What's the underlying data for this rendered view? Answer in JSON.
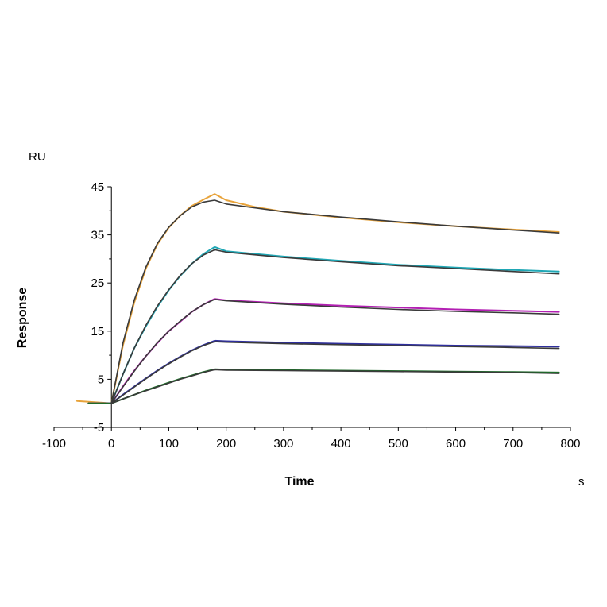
{
  "chart_data": {
    "type": "line",
    "title": "",
    "xlabel": "Time",
    "xunit": "s",
    "ylabel": "Response",
    "yunit": "RU",
    "xlim": [
      -100,
      800
    ],
    "ylim": [
      -5,
      45
    ],
    "xticks": [
      -100,
      0,
      100,
      200,
      300,
      400,
      500,
      600,
      700,
      800
    ],
    "yticks": [
      -5,
      5,
      15,
      25,
      35,
      45
    ],
    "xticklabels": [
      "-100",
      "0",
      "100",
      "200",
      "300",
      "400",
      "500",
      "600",
      "700",
      "800"
    ],
    "yticklabels": [
      "-5",
      "5",
      "15",
      "25",
      "35",
      "45"
    ],
    "grid": false,
    "legend": "none",
    "series": [
      {
        "color": "#E8A33A",
        "points": [
          [
            -60,
            0.5
          ],
          [
            0,
            0
          ],
          [
            20,
            12
          ],
          [
            40,
            21
          ],
          [
            60,
            28
          ],
          [
            80,
            33
          ],
          [
            100,
            36.5
          ],
          [
            120,
            39
          ],
          [
            140,
            41
          ],
          [
            160,
            42.3
          ],
          [
            180,
            43.5
          ],
          [
            200,
            42.2
          ],
          [
            250,
            40.8
          ],
          [
            300,
            39.8
          ],
          [
            400,
            38.6
          ],
          [
            500,
            37.6
          ],
          [
            600,
            36.8
          ],
          [
            700,
            36.1
          ],
          [
            780,
            35.6
          ]
        ]
      },
      {
        "color": "#1FA7B5",
        "points": [
          [
            -40,
            0
          ],
          [
            0,
            0
          ],
          [
            20,
            6
          ],
          [
            40,
            11.5
          ],
          [
            60,
            16
          ],
          [
            80,
            20
          ],
          [
            100,
            23.5
          ],
          [
            120,
            26.5
          ],
          [
            140,
            29
          ],
          [
            160,
            31
          ],
          [
            180,
            32.5
          ],
          [
            200,
            31.6
          ],
          [
            300,
            30.5
          ],
          [
            400,
            29.6
          ],
          [
            500,
            28.8
          ],
          [
            600,
            28.2
          ],
          [
            700,
            27.7
          ],
          [
            780,
            27.4
          ]
        ]
      },
      {
        "color": "#B31FB3",
        "points": [
          [
            -40,
            0
          ],
          [
            0,
            0
          ],
          [
            20,
            3.5
          ],
          [
            40,
            6.8
          ],
          [
            60,
            9.8
          ],
          [
            80,
            12.5
          ],
          [
            100,
            15
          ],
          [
            120,
            17
          ],
          [
            140,
            19
          ],
          [
            160,
            20.5
          ],
          [
            180,
            21.7
          ],
          [
            200,
            21.4
          ],
          [
            300,
            20.8
          ],
          [
            400,
            20.3
          ],
          [
            500,
            19.9
          ],
          [
            600,
            19.5
          ],
          [
            700,
            19.2
          ],
          [
            780,
            19
          ]
        ]
      },
      {
        "color": "#2F2F9E",
        "points": [
          [
            -40,
            0
          ],
          [
            0,
            0
          ],
          [
            20,
            1.8
          ],
          [
            40,
            3.5
          ],
          [
            60,
            5.2
          ],
          [
            80,
            6.8
          ],
          [
            100,
            8.3
          ],
          [
            120,
            9.7
          ],
          [
            140,
            11
          ],
          [
            160,
            12.1
          ],
          [
            180,
            13
          ],
          [
            200,
            12.9
          ],
          [
            300,
            12.6
          ],
          [
            400,
            12.4
          ],
          [
            500,
            12.2
          ],
          [
            600,
            12
          ],
          [
            700,
            11.9
          ],
          [
            780,
            11.8
          ]
        ]
      },
      {
        "color": "#1F6B2A",
        "points": [
          [
            -40,
            0
          ],
          [
            0,
            0
          ],
          [
            20,
            0.9
          ],
          [
            40,
            1.8
          ],
          [
            60,
            2.7
          ],
          [
            80,
            3.5
          ],
          [
            100,
            4.3
          ],
          [
            120,
            5.1
          ],
          [
            140,
            5.8
          ],
          [
            160,
            6.5
          ],
          [
            180,
            7.1
          ],
          [
            200,
            7
          ],
          [
            300,
            6.9
          ],
          [
            400,
            6.8
          ],
          [
            500,
            6.7
          ],
          [
            600,
            6.6
          ],
          [
            700,
            6.5
          ],
          [
            780,
            6.4
          ]
        ]
      }
    ],
    "fit_curves": [
      {
        "color": "#3A3A3A",
        "points": [
          [
            0,
            0
          ],
          [
            20,
            12.5
          ],
          [
            40,
            21.5
          ],
          [
            60,
            28.3
          ],
          [
            80,
            33.2
          ],
          [
            100,
            36.6
          ],
          [
            120,
            39
          ],
          [
            140,
            40.8
          ],
          [
            160,
            41.8
          ],
          [
            180,
            42.2
          ],
          [
            200,
            41.4
          ],
          [
            300,
            39.8
          ],
          [
            400,
            38.7
          ],
          [
            500,
            37.7
          ],
          [
            600,
            36.8
          ],
          [
            700,
            36
          ],
          [
            780,
            35.4
          ]
        ]
      },
      {
        "color": "#3A3A3A",
        "points": [
          [
            0,
            0
          ],
          [
            20,
            6
          ],
          [
            40,
            11.5
          ],
          [
            60,
            16.2
          ],
          [
            80,
            20.2
          ],
          [
            100,
            23.6
          ],
          [
            120,
            26.6
          ],
          [
            140,
            29
          ],
          [
            160,
            30.8
          ],
          [
            180,
            31.9
          ],
          [
            200,
            31.4
          ],
          [
            300,
            30.3
          ],
          [
            400,
            29.4
          ],
          [
            500,
            28.6
          ],
          [
            600,
            28
          ],
          [
            700,
            27.4
          ],
          [
            780,
            26.9
          ]
        ]
      },
      {
        "color": "#3A3A3A",
        "points": [
          [
            0,
            0
          ],
          [
            20,
            3.4
          ],
          [
            40,
            6.7
          ],
          [
            60,
            9.8
          ],
          [
            80,
            12.6
          ],
          [
            100,
            15
          ],
          [
            120,
            17.1
          ],
          [
            140,
            19
          ],
          [
            160,
            20.5
          ],
          [
            180,
            21.6
          ],
          [
            200,
            21.3
          ],
          [
            300,
            20.6
          ],
          [
            400,
            20
          ],
          [
            500,
            19.5
          ],
          [
            600,
            19.1
          ],
          [
            700,
            18.8
          ],
          [
            780,
            18.5
          ]
        ]
      },
      {
        "color": "#3A3A3A",
        "points": [
          [
            0,
            0
          ],
          [
            20,
            1.7
          ],
          [
            40,
            3.4
          ],
          [
            60,
            5.1
          ],
          [
            80,
            6.7
          ],
          [
            100,
            8.2
          ],
          [
            120,
            9.6
          ],
          [
            140,
            10.9
          ],
          [
            160,
            12
          ],
          [
            180,
            12.8
          ],
          [
            200,
            12.7
          ],
          [
            300,
            12.4
          ],
          [
            400,
            12.2
          ],
          [
            500,
            12
          ],
          [
            600,
            11.8
          ],
          [
            700,
            11.6
          ],
          [
            780,
            11.4
          ]
        ]
      },
      {
        "color": "#3A3A3A",
        "points": [
          [
            0,
            0
          ],
          [
            20,
            0.9
          ],
          [
            40,
            1.8
          ],
          [
            60,
            2.6
          ],
          [
            80,
            3.4
          ],
          [
            100,
            4.2
          ],
          [
            120,
            5
          ],
          [
            140,
            5.7
          ],
          [
            160,
            6.4
          ],
          [
            180,
            7
          ],
          [
            200,
            6.9
          ],
          [
            300,
            6.8
          ],
          [
            400,
            6.7
          ],
          [
            500,
            6.6
          ],
          [
            600,
            6.5
          ],
          [
            700,
            6.4
          ],
          [
            780,
            6.2
          ]
        ]
      }
    ]
  }
}
